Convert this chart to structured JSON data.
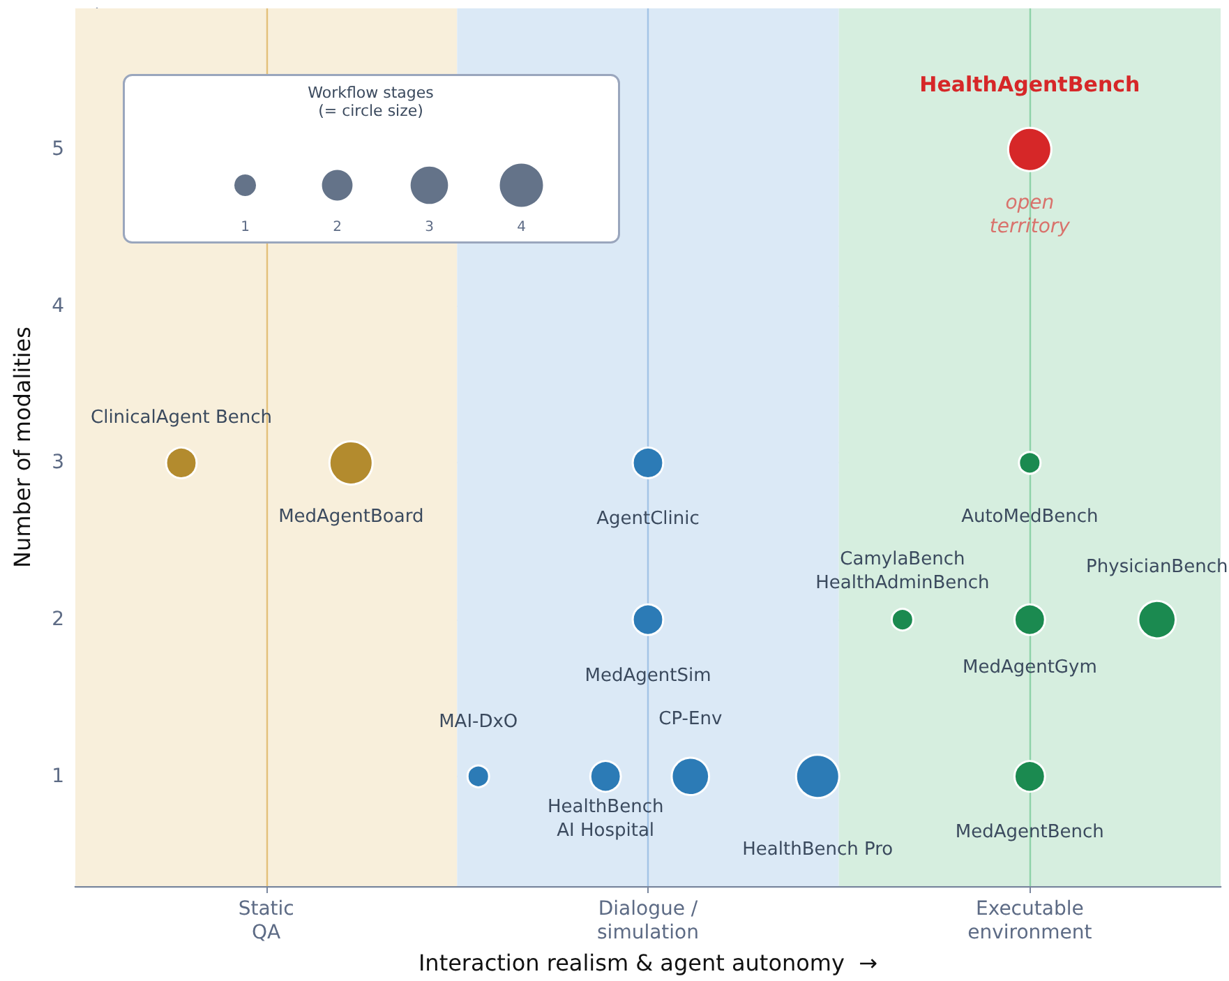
{
  "chart_data": {
    "type": "bubble",
    "xlabel": "Interaction realism & agent autonomy  →",
    "ylabel": "Number of modalities",
    "legend_title": "Workflow stages\n(= circle size)",
    "size_legend": [
      1,
      2,
      3,
      4
    ],
    "categories": [
      null,
      null,
      null,
      null,
      "Static\nQA",
      null,
      null,
      null,
      null,
      null,
      null,
      null,
      null,
      "Dialogue /\nsimulation",
      null,
      null,
      null,
      null,
      null,
      null,
      null,
      null,
      "Executable\nenvironment",
      null,
      null,
      null,
      null
    ],
    "ylim": [
      0.3,
      5.9
    ],
    "yticks": [
      1,
      2,
      3,
      4,
      5
    ],
    "grid": "y",
    "annotations": [
      {
        "text": "open\nterritory",
        "x": "Executable\nenvironment",
        "y": 5
      }
    ],
    "series": [
      {
        "name": "ClinicalAgent Bench",
        "color": "#b38b2e",
        "values": [
          null,
          null,
          3,
          null,
          null,
          null,
          null,
          null,
          null,
          null,
          null,
          null,
          null,
          null,
          null,
          null,
          null,
          null,
          null,
          null,
          null,
          null,
          null,
          null,
          null,
          null,
          null
        ],
        "sizes": [
          null,
          null,
          2,
          null,
          null,
          null,
          null,
          null,
          null,
          null,
          null,
          null,
          null,
          null,
          null,
          null,
          null,
          null,
          null,
          null,
          null,
          null,
          null,
          null,
          null,
          null,
          null
        ]
      },
      {
        "name": "MedAgentBoard",
        "color": "#b38b2e",
        "values": [
          null,
          null,
          null,
          null,
          null,
          null,
          3,
          null,
          null,
          null,
          null,
          null,
          null,
          null,
          null,
          null,
          null,
          null,
          null,
          null,
          null,
          null,
          null,
          null,
          null,
          null,
          null
        ],
        "sizes": [
          null,
          null,
          null,
          null,
          null,
          null,
          4,
          null,
          null,
          null,
          null,
          null,
          null,
          null,
          null,
          null,
          null,
          null,
          null,
          null,
          null,
          null,
          null,
          null,
          null,
          null,
          null
        ]
      },
      {
        "name": "AgentClinic",
        "color": "#2c7bb6",
        "values": [
          null,
          null,
          null,
          null,
          null,
          null,
          null,
          null,
          null,
          null,
          null,
          null,
          null,
          3,
          null,
          null,
          null,
          null,
          null,
          null,
          null,
          null,
          null,
          null,
          null,
          null,
          null
        ],
        "sizes": [
          null,
          null,
          null,
          null,
          null,
          null,
          null,
          null,
          null,
          null,
          null,
          null,
          null,
          2,
          null,
          null,
          null,
          null,
          null,
          null,
          null,
          null,
          null,
          null,
          null,
          null,
          null
        ]
      },
      {
        "name": "MedAgentSim",
        "color": "#2c7bb6",
        "values": [
          null,
          null,
          null,
          null,
          null,
          null,
          null,
          null,
          null,
          null,
          null,
          null,
          null,
          2,
          null,
          null,
          null,
          null,
          null,
          null,
          null,
          null,
          null,
          null,
          null,
          null,
          null
        ],
        "sizes": [
          null,
          null,
          null,
          null,
          null,
          null,
          null,
          null,
          null,
          null,
          null,
          null,
          null,
          2,
          null,
          null,
          null,
          null,
          null,
          null,
          null,
          null,
          null,
          null,
          null,
          null,
          null
        ]
      },
      {
        "name": "MAI-DxO",
        "color": "#2c7bb6",
        "values": [
          null,
          null,
          null,
          null,
          null,
          null,
          null,
          null,
          null,
          1,
          null,
          null,
          null,
          null,
          null,
          null,
          null,
          null,
          null,
          null,
          null,
          null,
          null,
          null,
          null,
          null,
          null
        ],
        "sizes": [
          null,
          null,
          null,
          null,
          null,
          null,
          null,
          null,
          null,
          1,
          null,
          null,
          null,
          null,
          null,
          null,
          null,
          null,
          null,
          null,
          null,
          null,
          null,
          null,
          null,
          null,
          null
        ]
      },
      {
        "name": "HealthBench\nAI Hospital",
        "color": "#2c7bb6",
        "values": [
          null,
          null,
          null,
          null,
          null,
          null,
          null,
          null,
          null,
          null,
          null,
          null,
          1,
          null,
          null,
          null,
          null,
          null,
          null,
          null,
          null,
          null,
          null,
          null,
          null,
          null,
          null
        ],
        "sizes": [
          null,
          null,
          null,
          null,
          null,
          null,
          null,
          null,
          null,
          null,
          null,
          null,
          2,
          null,
          null,
          null,
          null,
          null,
          null,
          null,
          null,
          null,
          null,
          null,
          null,
          null,
          null
        ]
      },
      {
        "name": "CP-Env",
        "color": "#2c7bb6",
        "values": [
          null,
          null,
          null,
          null,
          null,
          null,
          null,
          null,
          null,
          null,
          null,
          null,
          null,
          null,
          1,
          null,
          null,
          null,
          null,
          null,
          null,
          null,
          null,
          null,
          null,
          null,
          null
        ],
        "sizes": [
          null,
          null,
          null,
          null,
          null,
          null,
          null,
          null,
          null,
          null,
          null,
          null,
          null,
          null,
          3,
          null,
          null,
          null,
          null,
          null,
          null,
          null,
          null,
          null,
          null,
          null,
          null
        ]
      },
      {
        "name": "HealthBench Pro",
        "color": "#2c7bb6",
        "values": [
          null,
          null,
          null,
          null,
          null,
          null,
          null,
          null,
          null,
          null,
          null,
          null,
          null,
          null,
          null,
          null,
          null,
          1,
          null,
          null,
          null,
          null,
          null,
          null,
          null,
          null,
          null
        ],
        "sizes": [
          null,
          null,
          null,
          null,
          null,
          null,
          null,
          null,
          null,
          null,
          null,
          null,
          null,
          null,
          null,
          null,
          null,
          4,
          null,
          null,
          null,
          null,
          null,
          null,
          null,
          null,
          null
        ]
      },
      {
        "name": "CamylaBench\nHealthAdminBench",
        "color": "#1b8a50",
        "values": [
          null,
          null,
          null,
          null,
          null,
          null,
          null,
          null,
          null,
          null,
          null,
          null,
          null,
          null,
          null,
          null,
          null,
          null,
          null,
          2,
          null,
          null,
          null,
          null,
          null,
          null,
          null
        ],
        "sizes": [
          null,
          null,
          null,
          null,
          null,
          null,
          null,
          null,
          null,
          null,
          null,
          null,
          null,
          null,
          null,
          null,
          null,
          null,
          null,
          1,
          null,
          null,
          null,
          null,
          null,
          null,
          null
        ]
      },
      {
        "name": "MedAgentGym",
        "color": "#1b8a50",
        "values": [
          null,
          null,
          null,
          null,
          null,
          null,
          null,
          null,
          null,
          null,
          null,
          null,
          null,
          null,
          null,
          null,
          null,
          null,
          null,
          null,
          null,
          null,
          2,
          null,
          null,
          null,
          null
        ],
        "sizes": [
          null,
          null,
          null,
          null,
          null,
          null,
          null,
          null,
          null,
          null,
          null,
          null,
          null,
          null,
          null,
          null,
          null,
          null,
          null,
          null,
          null,
          null,
          2,
          null,
          null,
          null,
          null
        ]
      },
      {
        "name": "PhysicianBench",
        "color": "#1b8a50",
        "values": [
          null,
          null,
          null,
          null,
          null,
          null,
          null,
          null,
          null,
          null,
          null,
          null,
          null,
          null,
          null,
          null,
          null,
          null,
          null,
          null,
          null,
          null,
          null,
          null,
          null,
          2,
          null
        ],
        "sizes": [
          null,
          null,
          null,
          null,
          null,
          null,
          null,
          null,
          null,
          null,
          null,
          null,
          null,
          null,
          null,
          null,
          null,
          null,
          null,
          null,
          null,
          null,
          null,
          null,
          null,
          3,
          null
        ]
      },
      {
        "name": "AutoMedBench",
        "color": "#1b8a50",
        "values": [
          null,
          null,
          null,
          null,
          null,
          null,
          null,
          null,
          null,
          null,
          null,
          null,
          null,
          null,
          null,
          null,
          null,
          null,
          null,
          null,
          null,
          null,
          3,
          null,
          null,
          null,
          null
        ],
        "sizes": [
          null,
          null,
          null,
          null,
          null,
          null,
          null,
          null,
          null,
          null,
          null,
          null,
          null,
          null,
          null,
          null,
          null,
          null,
          null,
          null,
          null,
          null,
          1,
          null,
          null,
          null,
          null
        ]
      },
      {
        "name": "MedAgentBench",
        "color": "#1b8a50",
        "values": [
          null,
          null,
          null,
          null,
          null,
          null,
          null,
          null,
          null,
          null,
          null,
          null,
          null,
          null,
          null,
          null,
          null,
          null,
          null,
          null,
          null,
          null,
          1,
          null,
          null,
          null,
          null
        ],
        "sizes": [
          null,
          null,
          null,
          null,
          null,
          null,
          null,
          null,
          null,
          null,
          null,
          null,
          null,
          null,
          null,
          null,
          null,
          null,
          null,
          null,
          null,
          null,
          2,
          null,
          null,
          null,
          null
        ]
      },
      {
        "name": "HealthAgentBench",
        "color": "#d62728",
        "values": [
          null,
          null,
          null,
          null,
          null,
          null,
          null,
          null,
          null,
          null,
          null,
          null,
          null,
          null,
          null,
          null,
          null,
          null,
          null,
          null,
          null,
          null,
          5,
          null,
          null,
          null,
          null
        ],
        "sizes": [
          null,
          null,
          null,
          null,
          null,
          null,
          null,
          null,
          null,
          null,
          null,
          null,
          null,
          null,
          null,
          null,
          null,
          null,
          null,
          null,
          null,
          null,
          4,
          null,
          null,
          null,
          null
        ]
      }
    ]
  }
}
